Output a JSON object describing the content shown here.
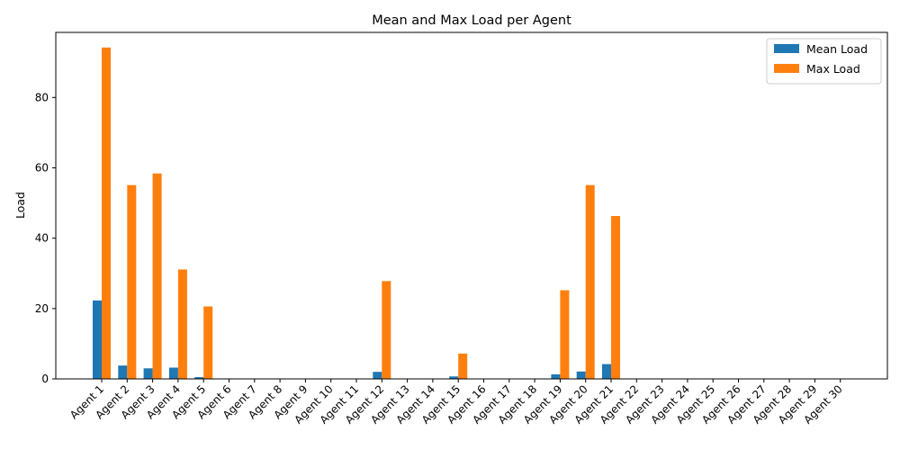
{
  "chart_data": {
    "type": "bar",
    "title": "Mean and Max Load per Agent",
    "xlabel": "",
    "ylabel": "Load",
    "ylim": [
      0,
      98.5
    ],
    "yticks": [
      0,
      20,
      40,
      60,
      80
    ],
    "grid": false,
    "legend_position": "top-right",
    "categories": [
      "Agent 1",
      "Agent 2",
      "Agent 3",
      "Agent 4",
      "Agent 5",
      "Agent 6",
      "Agent 7",
      "Agent 8",
      "Agent 9",
      "Agent 10",
      "Agent 11",
      "Agent 12",
      "Agent 13",
      "Agent 14",
      "Agent 15",
      "Agent 16",
      "Agent 17",
      "Agent 18",
      "Agent 19",
      "Agent 20",
      "Agent 21",
      "Agent 22",
      "Agent 23",
      "Agent 24",
      "Agent 25",
      "Agent 26",
      "Agent 27",
      "Agent 28",
      "Agent 29",
      "Agent 30"
    ],
    "series": [
      {
        "name": "Mean Load",
        "color": "#1f77b4",
        "values": [
          22.3,
          3.8,
          3.0,
          3.2,
          0.5,
          0,
          0,
          0,
          0,
          0,
          0,
          2.0,
          0,
          0,
          0.7,
          0,
          0,
          0,
          1.3,
          2.1,
          4.2,
          0,
          0,
          0,
          0,
          0,
          0,
          0,
          0,
          0
        ]
      },
      {
        "name": "Max Load",
        "color": "#ff7f0e",
        "values": [
          94.2,
          55.1,
          58.4,
          31.1,
          20.6,
          0,
          0,
          0,
          0,
          0,
          0,
          27.8,
          0,
          0,
          7.2,
          0,
          0,
          0,
          25.2,
          55.1,
          46.3,
          0,
          0,
          0,
          0,
          0,
          0,
          0,
          0,
          0
        ]
      }
    ]
  }
}
